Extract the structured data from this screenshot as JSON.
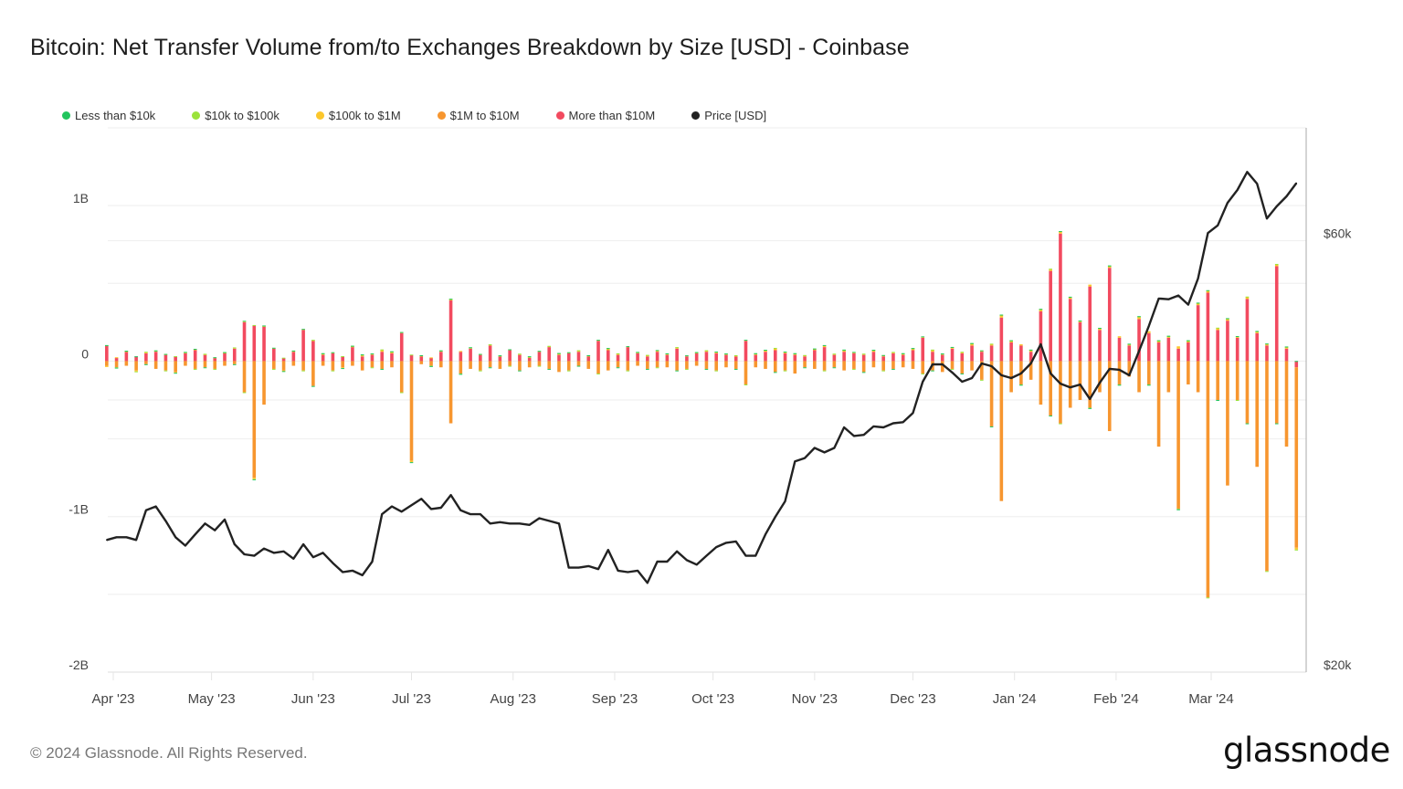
{
  "title": "Bitcoin: Net Transfer Volume from/to Exchanges Breakdown by Size [USD] - Coinbase",
  "footer": "© 2024 Glassnode. All Rights Reserved.",
  "logo_text": "glassnode",
  "chart_data": {
    "type": "bar",
    "subtype": "stacked bar with line overlay",
    "title": "Bitcoin: Net Transfer Volume from/to Exchanges Breakdown by Size [USD] - Coinbase",
    "legend_position": "top-left",
    "grid": true,
    "y_left": {
      "unit": "USD (millions)",
      "ylim": [
        -2000,
        1500
      ],
      "ticks": [
        {
          "value": 1000,
          "label": "1B"
        },
        {
          "value": 0,
          "label": "0"
        },
        {
          "value": -1000,
          "label": "-1B"
        },
        {
          "value": -2000,
          "label": "-2B"
        }
      ]
    },
    "y_right": {
      "scale": "log",
      "unit": "USD",
      "ylim": [
        20000,
        80000
      ],
      "ticks": [
        {
          "value": 60000,
          "label": "$60k"
        },
        {
          "value": 20000,
          "label": "$20k"
        }
      ],
      "gridlines": [
        20000,
        40000,
        60000
      ]
    },
    "x_ticks": [
      {
        "date": "2023-04-01",
        "label": "Apr '23"
      },
      {
        "date": "2023-05-01",
        "label": "May '23"
      },
      {
        "date": "2023-06-01",
        "label": "Jun '23"
      },
      {
        "date": "2023-07-01",
        "label": "Jul '23"
      },
      {
        "date": "2023-08-01",
        "label": "Aug '23"
      },
      {
        "date": "2023-09-01",
        "label": "Sep '23"
      },
      {
        "date": "2023-10-01",
        "label": "Oct '23"
      },
      {
        "date": "2023-11-01",
        "label": "Nov '23"
      },
      {
        "date": "2023-12-01",
        "label": "Dec '23"
      },
      {
        "date": "2024-01-01",
        "label": "Jan '24"
      },
      {
        "date": "2024-02-01",
        "label": "Feb '24"
      },
      {
        "date": "2024-03-01",
        "label": "Mar '24"
      }
    ],
    "x": [
      "2023-03-30",
      "2023-04-02",
      "2023-04-05",
      "2023-04-08",
      "2023-04-11",
      "2023-04-14",
      "2023-04-17",
      "2023-04-20",
      "2023-04-23",
      "2023-04-26",
      "2023-04-29",
      "2023-05-02",
      "2023-05-05",
      "2023-05-08",
      "2023-05-11",
      "2023-05-14",
      "2023-05-17",
      "2023-05-20",
      "2023-05-23",
      "2023-05-26",
      "2023-05-29",
      "2023-06-01",
      "2023-06-04",
      "2023-06-07",
      "2023-06-10",
      "2023-06-13",
      "2023-06-16",
      "2023-06-19",
      "2023-06-22",
      "2023-06-25",
      "2023-06-28",
      "2023-07-01",
      "2023-07-04",
      "2023-07-07",
      "2023-07-10",
      "2023-07-13",
      "2023-07-16",
      "2023-07-19",
      "2023-07-22",
      "2023-07-25",
      "2023-07-28",
      "2023-07-31",
      "2023-08-03",
      "2023-08-06",
      "2023-08-09",
      "2023-08-12",
      "2023-08-15",
      "2023-08-18",
      "2023-08-21",
      "2023-08-24",
      "2023-08-27",
      "2023-08-30",
      "2023-09-02",
      "2023-09-05",
      "2023-09-08",
      "2023-09-11",
      "2023-09-14",
      "2023-09-17",
      "2023-09-20",
      "2023-09-23",
      "2023-09-26",
      "2023-09-29",
      "2023-10-02",
      "2023-10-05",
      "2023-10-08",
      "2023-10-11",
      "2023-10-14",
      "2023-10-17",
      "2023-10-20",
      "2023-10-23",
      "2023-10-26",
      "2023-10-29",
      "2023-11-01",
      "2023-11-04",
      "2023-11-07",
      "2023-11-10",
      "2023-11-13",
      "2023-11-16",
      "2023-11-19",
      "2023-11-22",
      "2023-11-25",
      "2023-11-28",
      "2023-12-01",
      "2023-12-04",
      "2023-12-07",
      "2023-12-10",
      "2023-12-13",
      "2023-12-16",
      "2023-12-19",
      "2023-12-22",
      "2023-12-25",
      "2023-12-28",
      "2023-12-31",
      "2024-01-03",
      "2024-01-06",
      "2024-01-09",
      "2024-01-12",
      "2024-01-15",
      "2024-01-18",
      "2024-01-21",
      "2024-01-24",
      "2024-01-27",
      "2024-01-30",
      "2024-02-02",
      "2024-02-05",
      "2024-02-08",
      "2024-02-11",
      "2024-02-14",
      "2024-02-17",
      "2024-02-20",
      "2024-02-23",
      "2024-02-26",
      "2024-02-29",
      "2024-03-03",
      "2024-03-06",
      "2024-03-09",
      "2024-03-12",
      "2024-03-15",
      "2024-03-18",
      "2024-03-21",
      "2024-03-24",
      "2024-03-27"
    ],
    "series": [
      {
        "name": "Less than $10k",
        "color": "#22c55e",
        "axis": "left",
        "type": "bar",
        "values": [
          1,
          -1,
          1,
          1,
          -1,
          1,
          1,
          -1,
          1,
          1,
          -1,
          1,
          1,
          -1,
          1,
          -1,
          1,
          1,
          -1,
          1,
          1,
          -1,
          1,
          1,
          -1,
          1,
          1,
          1,
          -1,
          1,
          1,
          -1,
          1,
          -1,
          1,
          1,
          -1,
          1,
          1,
          -1,
          1,
          1,
          -1,
          1,
          1,
          -1,
          1,
          1,
          -1,
          1,
          1,
          1,
          -1,
          1,
          1,
          -1,
          1,
          1,
          -1,
          1,
          1,
          -1,
          1,
          1,
          -1,
          1,
          1,
          1,
          -1,
          1,
          1,
          -1,
          1,
          1,
          -1,
          1,
          1,
          -1,
          1,
          1,
          -1,
          1,
          1,
          1,
          -1,
          1,
          1,
          -1,
          1,
          1,
          -1,
          1,
          1,
          -1,
          1,
          1,
          -1,
          1,
          1,
          1,
          -1,
          1,
          1,
          -1,
          1,
          1,
          -1,
          1,
          1,
          -1,
          1,
          1,
          1,
          -1,
          1,
          1,
          -1,
          1,
          1,
          -1,
          1,
          1
        ]
      },
      {
        "name": "$10k to $100k",
        "color": "#9be33b",
        "axis": "left",
        "type": "bar",
        "values": [
          2,
          -2,
          2,
          -2,
          2,
          2,
          -2,
          2,
          2,
          -2,
          2,
          -2,
          2,
          2,
          -2,
          2,
          2,
          -2,
          2,
          2,
          -2,
          2,
          2,
          -2,
          2,
          3,
          2,
          -2,
          3,
          2,
          -2,
          2,
          2,
          -2,
          2,
          2,
          -2,
          2,
          -2,
          2,
          2,
          -2,
          2,
          2,
          -2,
          2,
          3,
          -2,
          2,
          2,
          -2,
          3,
          2,
          -2,
          2,
          2,
          -2,
          3,
          2,
          -2,
          2,
          2,
          -2,
          2,
          3,
          -2,
          2,
          2,
          3,
          -2,
          2,
          3,
          2,
          -2,
          2,
          3,
          -2,
          2,
          2,
          -2,
          3,
          2,
          3,
          -2,
          2,
          2,
          -3,
          2,
          3,
          -2,
          2,
          3,
          3,
          -2,
          3,
          3,
          2,
          -3,
          3,
          2,
          -2,
          3,
          2,
          -2,
          3,
          3,
          -2,
          3,
          2,
          -3,
          3,
          3,
          -2,
          3,
          3,
          -2,
          3,
          3,
          -2,
          3,
          3,
          -3
        ]
      },
      {
        "name": "$100k to $1M",
        "color": "#fcc72c",
        "axis": "left",
        "type": "bar",
        "values": [
          -8,
          5,
          4,
          -6,
          8,
          6,
          5,
          -5,
          6,
          8,
          5,
          4,
          5,
          6,
          8,
          -10,
          6,
          5,
          -4,
          5,
          6,
          5,
          8,
          6,
          -5,
          5,
          10,
          8,
          12,
          10,
          6,
          -10,
          5,
          4,
          6,
          8,
          5,
          6,
          5,
          6,
          4,
          5,
          6,
          8,
          5,
          6,
          8,
          6,
          8,
          5,
          6,
          10,
          8,
          5,
          6,
          8,
          10,
          6,
          8,
          6,
          5,
          8,
          10,
          6,
          5,
          6,
          8,
          10,
          12,
          10,
          8,
          6,
          8,
          12,
          6,
          10,
          8,
          6,
          10,
          8,
          6,
          8,
          10,
          8,
          12,
          6,
          10,
          8,
          12,
          8,
          10,
          15,
          10,
          8,
          10,
          12,
          12,
          15,
          10,
          8,
          12,
          10,
          12,
          10,
          8,
          15,
          12,
          10,
          10,
          15,
          10,
          12,
          15,
          12,
          12,
          10,
          12,
          10,
          12,
          12,
          10,
          -12
        ]
      },
      {
        "name": "$1M to $10M",
        "color": "#f7962f",
        "axis": "left",
        "type": "bar",
        "values": [
          -30,
          -40,
          -30,
          -60,
          -20,
          -50,
          -60,
          -70,
          -30,
          -50,
          -40,
          -50,
          -30,
          -20,
          -200,
          -750,
          -280,
          -50,
          -60,
          -30,
          -60,
          -160,
          -30,
          -60,
          -40,
          -30,
          -60,
          -40,
          -50,
          -40,
          -200,
          -640,
          -20,
          -30,
          -40,
          -400,
          -80,
          -50,
          -60,
          -40,
          -50,
          -30,
          -60,
          -40,
          -30,
          -50,
          -70,
          -60,
          -30,
          -50,
          -80,
          -60,
          -40,
          -60,
          -30,
          -50,
          -40,
          -40,
          -60,
          -50,
          -30,
          -50,
          -60,
          -40,
          -50,
          -150,
          -40,
          -50,
          -70,
          -60,
          -80,
          -40,
          -50,
          -60,
          -40,
          -60,
          -50,
          -70,
          -40,
          -60,
          -50,
          -40,
          -50,
          -80,
          -60,
          -70,
          -50,
          -80,
          -60,
          -120,
          -420,
          -900,
          -200,
          -150,
          -120,
          -280,
          -350,
          -400,
          -300,
          -250,
          -300,
          -200,
          -450,
          -150,
          -100,
          -200,
          -150,
          -550,
          -200,
          -950,
          -150,
          -200,
          -1520,
          -250,
          -800,
          -250,
          -400,
          -680,
          -1350,
          -400,
          -550,
          -1160
        ]
      },
      {
        "name": "More than $10M",
        "color": "#f24a5f",
        "axis": "left",
        "type": "bar",
        "values": [
          100,
          20,
          60,
          30,
          50,
          60,
          40,
          30,
          50,
          70,
          40,
          20,
          50,
          80,
          250,
          230,
          220,
          80,
          20,
          60,
          200,
          130,
          40,
          50,
          30,
          90,
          30,
          40,
          60,
          50,
          180,
          40,
          30,
          20,
          60,
          390,
          60,
          80,
          40,
          100,
          30,
          70,
          40,
          20,
          60,
          90,
          40,
          50,
          60,
          30,
          130,
          70,
          40,
          90,
          50,
          30,
          60,
          40,
          80,
          30,
          50,
          60,
          50,
          40,
          30,
          130,
          40,
          60,
          70,
          50,
          40,
          30,
          70,
          90,
          40,
          60,
          50,
          40,
          60,
          30,
          50,
          40,
          70,
          150,
          60,
          40,
          80,
          50,
          100,
          60,
          100,
          280,
          120,
          100,
          60,
          320,
          580,
          820,
          400,
          250,
          480,
          200,
          600,
          150,
          100,
          270,
          180,
          120,
          150,
          80,
          120,
          360,
          440,
          200,
          260,
          150,
          400,
          180,
          100,
          610,
          80,
          -40
        ]
      },
      {
        "name": "Price [USD]",
        "color": "#222222",
        "axis": "right",
        "type": "line",
        "values": [
          28000,
          28200,
          28200,
          28000,
          30200,
          30500,
          29400,
          28200,
          27600,
          28400,
          29200,
          28700,
          29500,
          27700,
          27000,
          26900,
          27400,
          27100,
          27200,
          26700,
          27700,
          26800,
          27100,
          26400,
          25800,
          25900,
          25600,
          26500,
          29900,
          30500,
          30100,
          30600,
          31100,
          30300,
          30400,
          31400,
          30200,
          29900,
          29900,
          29200,
          29300,
          29200,
          29200,
          29100,
          29600,
          29400,
          29200,
          26100,
          26100,
          26200,
          26000,
          27300,
          25900,
          25800,
          25900,
          25100,
          26500,
          26500,
          27200,
          26600,
          26300,
          26900,
          27500,
          27800,
          27900,
          26900,
          26900,
          28400,
          29700,
          30900,
          34200,
          34500,
          35400,
          35000,
          35400,
          37300,
          36500,
          36600,
          37400,
          37300,
          37700,
          37800,
          38700,
          41900,
          43800,
          43800,
          42900,
          41900,
          42300,
          43900,
          43600,
          42600,
          42300,
          42800,
          43900,
          46100,
          42800,
          41700,
          41300,
          41600,
          40100,
          41800,
          43300,
          43200,
          42600,
          45300,
          48300,
          51800,
          51700,
          52200,
          51000,
          54500,
          61200,
          62400,
          66100,
          68300,
          71500,
          69400,
          63500,
          65500,
          67200,
          69500
        ]
      }
    ]
  }
}
